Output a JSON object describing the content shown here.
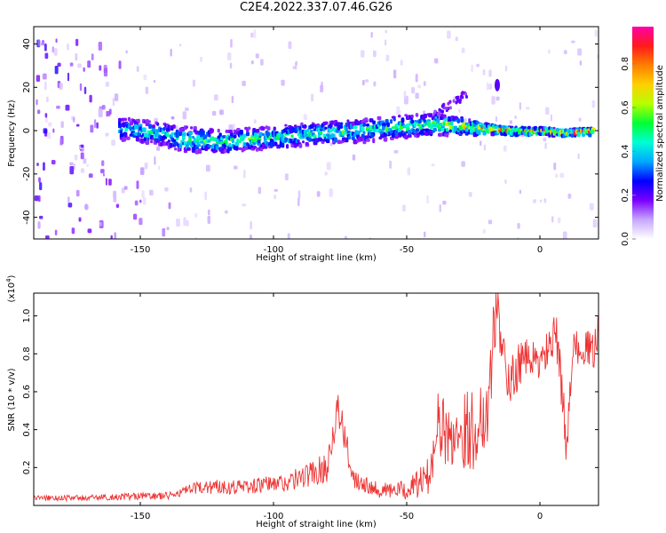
{
  "title": "C2E4.2022.337.07.46.G26",
  "colors": {
    "snr_line": "#ee3333",
    "colorbar_stops": [
      "#ffffff",
      "#c7a6ff",
      "#7a00ff",
      "#0000ff",
      "#00a8ff",
      "#00ffd5",
      "#00ff33",
      "#b6ff00",
      "#ffd000",
      "#ff7f00",
      "#ff1a1a",
      "#ff00aa"
    ]
  },
  "chart_data": [
    {
      "id": "spectrogram",
      "type": "heatmap",
      "xlabel": "Height of straight line (km)",
      "ylabel": "Frequency (Hz)",
      "xlim": [
        -190,
        22
      ],
      "ylim": [
        -50,
        48
      ],
      "xticks": [
        -150,
        -100,
        -50,
        0
      ],
      "xtick_labels": [
        "-150",
        "-100",
        "-50",
        "0"
      ],
      "yticks": [
        -40,
        -20,
        0,
        20,
        40
      ],
      "ytick_labels": [
        "-40",
        "-20",
        "0",
        "20",
        "40"
      ],
      "colorbar": {
        "label": "Normalized spectral amplitude",
        "range": [
          0,
          0.97
        ],
        "ticks": [
          0.0,
          0.2,
          0.4,
          0.6,
          0.8
        ],
        "tick_labels": [
          "0.0",
          "0.2",
          "0.4",
          "0.6",
          "0.8"
        ]
      },
      "signal_track": {
        "x": [
          -158,
          -150,
          -140,
          -135,
          -120,
          -100,
          -80,
          -60,
          -50,
          -40,
          -30,
          -20,
          -10,
          0,
          10,
          20
        ],
        "center_freq_hz": [
          1,
          0,
          -2,
          -4,
          -5,
          -3,
          -1,
          1,
          2,
          3,
          2,
          1,
          0,
          0,
          -1,
          0
        ],
        "half_width_hz": [
          5,
          5,
          5,
          6,
          5,
          5,
          5,
          5,
          5,
          5,
          4,
          2,
          1.5,
          1.5,
          1.5,
          1.5
        ],
        "peak_amplitude": [
          0.45,
          0.5,
          0.5,
          0.55,
          0.55,
          0.55,
          0.55,
          0.55,
          0.55,
          0.6,
          0.7,
          0.85,
          0.9,
          0.85,
          0.9,
          0.9
        ]
      },
      "secondary_feature": {
        "x": [
          -40,
          -28
        ],
        "freq_hz": [
          8,
          18
        ]
      },
      "isolated_blob": {
        "x": -16,
        "freq_hz": 21
      }
    },
    {
      "id": "snr",
      "type": "line",
      "xlabel": "Height of straight line (km)",
      "ylabel": "SNR (10 * v/v)",
      "y_scale_label": "(x10",
      "y_scale_exp": "4",
      "xlim": [
        -190,
        22
      ],
      "ylim": [
        0,
        1.12
      ],
      "xticks": [
        -150,
        -100,
        -50,
        0
      ],
      "xtick_labels": [
        "-150",
        "-100",
        "-50",
        "0"
      ],
      "yticks": [
        0.2,
        0.4,
        0.6,
        0.8,
        1.0
      ],
      "ytick_labels": [
        "0.2",
        "0.4",
        "0.6",
        "0.8",
        "1.0"
      ],
      "series": [
        {
          "x": [
            -190,
            -170,
            -150,
            -140,
            -132,
            -125,
            -110,
            -95,
            -80,
            -76,
            -70,
            -60,
            -50,
            -42,
            -38,
            -35,
            -30,
            -25,
            -20,
            -16,
            -12,
            -8,
            -4,
            0,
            4,
            6,
            8,
            10,
            12,
            16,
            20,
            22
          ],
          "y": [
            0.04,
            0.04,
            0.05,
            0.05,
            0.08,
            0.1,
            0.1,
            0.12,
            0.2,
            0.52,
            0.15,
            0.08,
            0.08,
            0.15,
            0.45,
            0.35,
            0.4,
            0.4,
            0.5,
            1.1,
            0.6,
            0.75,
            0.78,
            0.75,
            0.85,
            0.9,
            0.65,
            0.3,
            0.8,
            0.85,
            0.8,
            0.95
          ],
          "noise_amplitude": [
            0.015,
            0.015,
            0.02,
            0.02,
            0.03,
            0.04,
            0.04,
            0.05,
            0.08,
            0.1,
            0.06,
            0.04,
            0.05,
            0.1,
            0.18,
            0.18,
            0.2,
            0.22,
            0.22,
            0.2,
            0.15,
            0.12,
            0.1,
            0.1,
            0.1,
            0.12,
            0.15,
            0.1,
            0.1,
            0.1,
            0.1,
            0.1
          ]
        }
      ]
    }
  ]
}
